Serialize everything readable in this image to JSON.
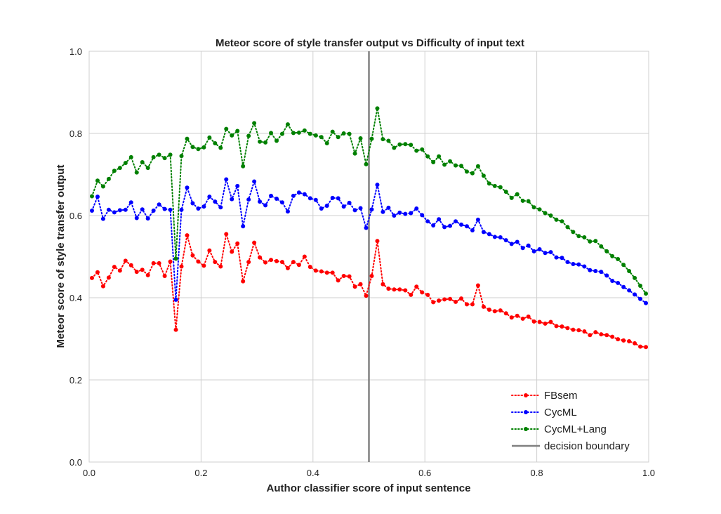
{
  "chart_data": {
    "type": "line",
    "title": "Meteor score of style transfer output vs Difficulty of input text",
    "xlabel": "Author classifier score of input sentence",
    "ylabel": "Meteor score of style transfer output",
    "xlim": [
      0.0,
      1.0
    ],
    "ylim": [
      0.0,
      1.0
    ],
    "xticks": [
      "0.0",
      "0.2",
      "0.4",
      "0.6",
      "0.8",
      "1.0"
    ],
    "yticks": [
      "0.0",
      "0.2",
      "0.4",
      "0.6",
      "0.8",
      "1.0"
    ],
    "grid": true,
    "legend_position": "lower-right",
    "x": [
      0.005,
      0.015,
      0.025,
      0.035,
      0.045,
      0.055,
      0.065,
      0.075,
      0.085,
      0.095,
      0.105,
      0.115,
      0.125,
      0.135,
      0.145,
      0.155,
      0.165,
      0.175,
      0.185,
      0.195,
      0.205,
      0.215,
      0.225,
      0.235,
      0.245,
      0.255,
      0.265,
      0.275,
      0.285,
      0.295,
      0.305,
      0.315,
      0.325,
      0.335,
      0.345,
      0.355,
      0.365,
      0.375,
      0.385,
      0.395,
      0.405,
      0.415,
      0.425,
      0.435,
      0.445,
      0.455,
      0.465,
      0.475,
      0.485,
      0.495,
      0.505,
      0.515,
      0.525,
      0.535,
      0.545,
      0.555,
      0.565,
      0.575,
      0.585,
      0.595,
      0.605,
      0.615,
      0.625,
      0.635,
      0.645,
      0.655,
      0.665,
      0.675,
      0.685,
      0.695,
      0.705,
      0.715,
      0.725,
      0.735,
      0.745,
      0.755,
      0.765,
      0.775,
      0.785,
      0.795,
      0.805,
      0.815,
      0.825,
      0.835,
      0.845,
      0.855,
      0.865,
      0.875,
      0.885,
      0.895,
      0.905,
      0.915,
      0.925,
      0.935,
      0.945,
      0.955,
      0.965,
      0.975,
      0.985,
      0.995
    ],
    "series": [
      {
        "name": "FBsem",
        "color": "#ff0000",
        "values": [
          0.448,
          0.462,
          0.428,
          0.449,
          0.475,
          0.466,
          0.49,
          0.479,
          0.463,
          0.468,
          0.455,
          0.484,
          0.484,
          0.453,
          0.488,
          0.322,
          0.476,
          0.552,
          0.503,
          0.488,
          0.478,
          0.515,
          0.487,
          0.476,
          0.555,
          0.512,
          0.532,
          0.44,
          0.487,
          0.534,
          0.498,
          0.486,
          0.492,
          0.489,
          0.487,
          0.472,
          0.487,
          0.48,
          0.5,
          0.475,
          0.466,
          0.464,
          0.461,
          0.461,
          0.442,
          0.453,
          0.452,
          0.427,
          0.433,
          0.405,
          0.453,
          0.538,
          0.433,
          0.422,
          0.42,
          0.42,
          0.418,
          0.407,
          0.427,
          0.413,
          0.407,
          0.389,
          0.393,
          0.396,
          0.397,
          0.39,
          0.398,
          0.384,
          0.384,
          0.43,
          0.378,
          0.371,
          0.367,
          0.369,
          0.362,
          0.352,
          0.356,
          0.349,
          0.354,
          0.342,
          0.341,
          0.337,
          0.341,
          0.331,
          0.33,
          0.326,
          0.322,
          0.321,
          0.318,
          0.309,
          0.316,
          0.311,
          0.309,
          0.305,
          0.299,
          0.296,
          0.294,
          0.289,
          0.281,
          0.28
        ]
      },
      {
        "name": "CycML",
        "color": "#0000ff",
        "values": [
          0.612,
          0.646,
          0.592,
          0.614,
          0.608,
          0.613,
          0.614,
          0.632,
          0.594,
          0.615,
          0.593,
          0.612,
          0.627,
          0.616,
          0.614,
          0.395,
          0.614,
          0.668,
          0.63,
          0.617,
          0.622,
          0.646,
          0.634,
          0.62,
          0.688,
          0.64,
          0.672,
          0.574,
          0.639,
          0.683,
          0.634,
          0.625,
          0.648,
          0.641,
          0.632,
          0.61,
          0.648,
          0.656,
          0.652,
          0.642,
          0.638,
          0.617,
          0.624,
          0.643,
          0.642,
          0.622,
          0.631,
          0.613,
          0.618,
          0.57,
          0.615,
          0.675,
          0.609,
          0.619,
          0.6,
          0.607,
          0.604,
          0.606,
          0.617,
          0.601,
          0.586,
          0.576,
          0.591,
          0.572,
          0.575,
          0.586,
          0.578,
          0.574,
          0.564,
          0.59,
          0.56,
          0.555,
          0.548,
          0.547,
          0.54,
          0.531,
          0.536,
          0.521,
          0.527,
          0.513,
          0.518,
          0.509,
          0.511,
          0.498,
          0.497,
          0.487,
          0.482,
          0.481,
          0.476,
          0.467,
          0.465,
          0.463,
          0.454,
          0.441,
          0.436,
          0.426,
          0.418,
          0.408,
          0.397,
          0.387
        ]
      },
      {
        "name": "CycML+Lang",
        "color": "#008000",
        "values": [
          0.647,
          0.685,
          0.671,
          0.689,
          0.709,
          0.716,
          0.728,
          0.742,
          0.705,
          0.73,
          0.716,
          0.742,
          0.748,
          0.74,
          0.748,
          0.495,
          0.745,
          0.787,
          0.767,
          0.762,
          0.766,
          0.79,
          0.776,
          0.765,
          0.811,
          0.795,
          0.806,
          0.72,
          0.794,
          0.825,
          0.78,
          0.778,
          0.801,
          0.782,
          0.799,
          0.822,
          0.801,
          0.802,
          0.807,
          0.799,
          0.795,
          0.791,
          0.776,
          0.804,
          0.791,
          0.8,
          0.799,
          0.751,
          0.788,
          0.725,
          0.787,
          0.861,
          0.786,
          0.782,
          0.765,
          0.773,
          0.774,
          0.772,
          0.758,
          0.761,
          0.744,
          0.73,
          0.744,
          0.724,
          0.732,
          0.722,
          0.721,
          0.707,
          0.703,
          0.72,
          0.697,
          0.678,
          0.672,
          0.669,
          0.658,
          0.643,
          0.652,
          0.636,
          0.635,
          0.62,
          0.615,
          0.606,
          0.6,
          0.59,
          0.586,
          0.572,
          0.56,
          0.55,
          0.547,
          0.537,
          0.538,
          0.525,
          0.513,
          0.501,
          0.494,
          0.48,
          0.465,
          0.448,
          0.429,
          0.41
        ]
      }
    ],
    "reference_lines": [
      {
        "name": "decision boundary",
        "orientation": "vertical",
        "x": 0.5,
        "color": "#808080"
      }
    ]
  }
}
